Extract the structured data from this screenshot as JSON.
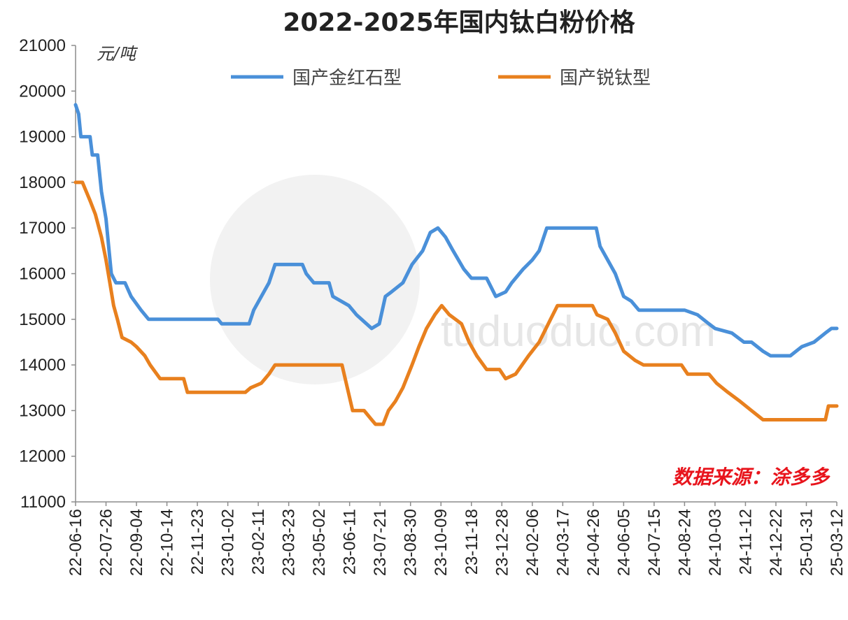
{
  "chart_data": {
    "type": "line",
    "title": "2022-2025年国内钛白粉价格",
    "y_unit": "元/吨",
    "ylim": [
      11000,
      21000
    ],
    "y_ticks": [
      11000,
      12000,
      13000,
      14000,
      15000,
      16000,
      17000,
      18000,
      19000,
      20000,
      21000
    ],
    "x_ticks": [
      "22-06-16",
      "22-07-26",
      "22-09-04",
      "22-10-14",
      "22-11-23",
      "23-01-02",
      "23-02-11",
      "23-03-23",
      "23-05-02",
      "23-06-11",
      "23-07-21",
      "23-08-30",
      "23-10-09",
      "23-11-18",
      "23-12-28",
      "24-02-06",
      "24-03-17",
      "24-04-26",
      "24-06-05",
      "24-07-15",
      "24-08-24",
      "24-10-03",
      "24-11-12",
      "24-12-22",
      "25-01-31",
      "25-03-12"
    ],
    "legend": "top",
    "grid": false,
    "source": "数据来源：涂多多",
    "watermark": "tuduoduo.com",
    "series": [
      {
        "name": "国产金红石型",
        "color": "#4a90d9",
        "points": [
          [
            "22-06-16",
            19700
          ],
          [
            "22-06-20",
            19500
          ],
          [
            "22-06-23",
            19000
          ],
          [
            "22-07-05",
            19000
          ],
          [
            "22-07-08",
            18600
          ],
          [
            "22-07-15",
            18600
          ],
          [
            "22-07-20",
            17800
          ],
          [
            "22-07-26",
            17200
          ],
          [
            "22-07-30",
            16500
          ],
          [
            "22-08-02",
            16000
          ],
          [
            "22-08-08",
            15800
          ],
          [
            "22-08-20",
            15800
          ],
          [
            "22-08-28",
            15500
          ],
          [
            "22-09-10",
            15200
          ],
          [
            "22-09-20",
            15000
          ],
          [
            "22-12-20",
            15000
          ],
          [
            "22-12-25",
            14900
          ],
          [
            "23-01-30",
            14900
          ],
          [
            "23-02-05",
            15200
          ],
          [
            "23-02-15",
            15500
          ],
          [
            "23-02-25",
            15800
          ],
          [
            "23-03-05",
            16200
          ],
          [
            "23-04-10",
            16200
          ],
          [
            "23-04-15",
            16000
          ],
          [
            "23-04-25",
            15800
          ],
          [
            "23-05-15",
            15800
          ],
          [
            "23-05-20",
            15500
          ],
          [
            "23-06-10",
            15300
          ],
          [
            "23-06-20",
            15100
          ],
          [
            "23-07-10",
            14800
          ],
          [
            "23-07-20",
            14900
          ],
          [
            "23-07-28",
            15500
          ],
          [
            "23-08-05",
            15600
          ],
          [
            "23-08-20",
            15800
          ],
          [
            "23-09-01",
            16200
          ],
          [
            "23-09-15",
            16500
          ],
          [
            "23-09-25",
            16900
          ],
          [
            "23-10-05",
            17000
          ],
          [
            "23-10-15",
            16800
          ],
          [
            "23-10-25",
            16500
          ],
          [
            "23-11-08",
            16100
          ],
          [
            "23-11-18",
            15900
          ],
          [
            "23-12-08",
            15900
          ],
          [
            "23-12-20",
            15500
          ],
          [
            "24-01-02",
            15600
          ],
          [
            "24-01-10",
            15800
          ],
          [
            "24-01-25",
            16100
          ],
          [
            "24-02-06",
            16300
          ],
          [
            "24-02-15",
            16500
          ],
          [
            "24-02-25",
            17000
          ],
          [
            "24-04-30",
            17000
          ],
          [
            "24-05-05",
            16600
          ],
          [
            "24-05-15",
            16300
          ],
          [
            "24-05-25",
            16000
          ],
          [
            "24-06-05",
            15500
          ],
          [
            "24-06-15",
            15400
          ],
          [
            "24-06-25",
            15200
          ],
          [
            "24-08-24",
            15200
          ],
          [
            "24-09-10",
            15100
          ],
          [
            "24-09-25",
            14900
          ],
          [
            "24-10-03",
            14800
          ],
          [
            "24-10-25",
            14700
          ],
          [
            "24-11-10",
            14500
          ],
          [
            "24-11-20",
            14500
          ],
          [
            "24-12-05",
            14300
          ],
          [
            "24-12-15",
            14200
          ],
          [
            "25-01-10",
            14200
          ],
          [
            "25-01-25",
            14400
          ],
          [
            "25-02-10",
            14500
          ],
          [
            "25-02-25",
            14700
          ],
          [
            "25-03-05",
            14800
          ],
          [
            "25-03-12",
            14800
          ]
        ]
      },
      {
        "name": "国产锐钛型",
        "color": "#e8801e",
        "points": [
          [
            "22-06-16",
            18000
          ],
          [
            "22-06-25",
            18000
          ],
          [
            "22-07-05",
            17600
          ],
          [
            "22-07-12",
            17300
          ],
          [
            "22-07-20",
            16800
          ],
          [
            "22-07-26",
            16300
          ],
          [
            "22-07-31",
            15800
          ],
          [
            "22-08-05",
            15300
          ],
          [
            "22-08-10",
            15000
          ],
          [
            "22-08-16",
            14600
          ],
          [
            "22-08-28",
            14500
          ],
          [
            "22-09-04",
            14400
          ],
          [
            "22-09-15",
            14200
          ],
          [
            "22-09-22",
            14000
          ],
          [
            "22-10-05",
            13700
          ],
          [
            "22-11-05",
            13700
          ],
          [
            "22-11-10",
            13400
          ],
          [
            "23-01-25",
            13400
          ],
          [
            "23-02-01",
            13500
          ],
          [
            "23-02-15",
            13600
          ],
          [
            "23-02-25",
            13800
          ],
          [
            "23-03-05",
            14000
          ],
          [
            "23-06-01",
            14000
          ],
          [
            "23-06-08",
            13500
          ],
          [
            "23-06-15",
            13000
          ],
          [
            "23-06-30",
            13000
          ],
          [
            "23-07-10",
            12800
          ],
          [
            "23-07-15",
            12700
          ],
          [
            "23-07-25",
            12700
          ],
          [
            "23-08-01",
            13000
          ],
          [
            "23-08-10",
            13200
          ],
          [
            "23-08-20",
            13500
          ],
          [
            "23-09-01",
            14000
          ],
          [
            "23-09-10",
            14400
          ],
          [
            "23-09-20",
            14800
          ],
          [
            "23-10-01",
            15100
          ],
          [
            "23-10-10",
            15300
          ],
          [
            "23-10-20",
            15100
          ],
          [
            "23-11-05",
            14900
          ],
          [
            "23-11-15",
            14500
          ],
          [
            "23-11-25",
            14200
          ],
          [
            "23-12-08",
            13900
          ],
          [
            "23-12-25",
            13900
          ],
          [
            "24-01-02",
            13700
          ],
          [
            "24-01-15",
            13800
          ],
          [
            "24-02-01",
            14200
          ],
          [
            "24-02-15",
            14500
          ],
          [
            "24-03-01",
            15000
          ],
          [
            "24-03-10",
            15300
          ],
          [
            "24-04-25",
            15300
          ],
          [
            "24-05-01",
            15100
          ],
          [
            "24-05-15",
            15000
          ],
          [
            "24-05-25",
            14700
          ],
          [
            "24-06-05",
            14300
          ],
          [
            "24-06-20",
            14100
          ],
          [
            "24-07-01",
            14000
          ],
          [
            "24-08-20",
            14000
          ],
          [
            "24-08-28",
            13800
          ],
          [
            "24-09-25",
            13800
          ],
          [
            "24-10-05",
            13600
          ],
          [
            "24-10-20",
            13400
          ],
          [
            "24-11-05",
            13200
          ],
          [
            "24-11-20",
            13000
          ],
          [
            "24-12-05",
            12800
          ],
          [
            "25-02-25",
            12800
          ],
          [
            "25-03-01",
            13100
          ],
          [
            "25-03-12",
            13100
          ]
        ]
      }
    ]
  }
}
